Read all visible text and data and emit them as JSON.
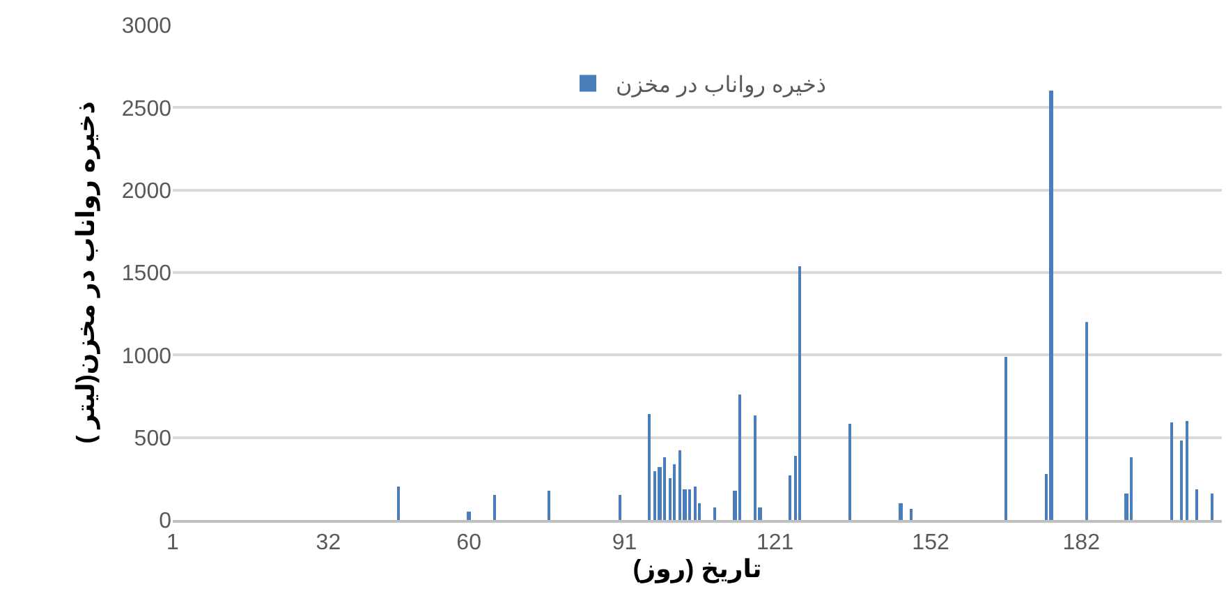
{
  "chart_data": {
    "type": "bar",
    "xlabel": "تاریخ (روز)",
    "ylabel": "ذخیره رواناب در مخزن(لیتر )",
    "x": [
      46,
      60,
      65,
      76,
      90,
      96,
      97,
      98,
      99,
      100,
      101,
      102,
      103,
      104,
      105,
      106,
      109,
      113,
      114,
      117,
      118,
      124,
      125,
      126,
      136,
      146,
      148,
      167,
      175,
      176,
      183,
      191,
      192,
      200,
      202,
      203,
      205,
      208
    ],
    "series": [
      {
        "name": "ذخیره رواناب در مخزن",
        "color": "#4a7ebb",
        "values": [
          200,
          50,
          150,
          175,
          150,
          640,
          300,
          320,
          380,
          250,
          340,
          420,
          190,
          190,
          200,
          100,
          80,
          180,
          760,
          630,
          80,
          270,
          390,
          1540,
          580,
          100,
          70,
          990,
          280,
          2600,
          1200,
          160,
          380,
          590,
          480,
          600,
          190,
          160
        ]
      }
    ],
    "xlim": [
      1,
      210
    ],
    "xticks": [
      1,
      32,
      60,
      91,
      121,
      152,
      182
    ],
    "ylim": [
      0,
      3000
    ],
    "yticks": [
      0,
      500,
      1000,
      1500,
      2000,
      2500,
      3000
    ],
    "grid": "y",
    "legend": "top"
  }
}
